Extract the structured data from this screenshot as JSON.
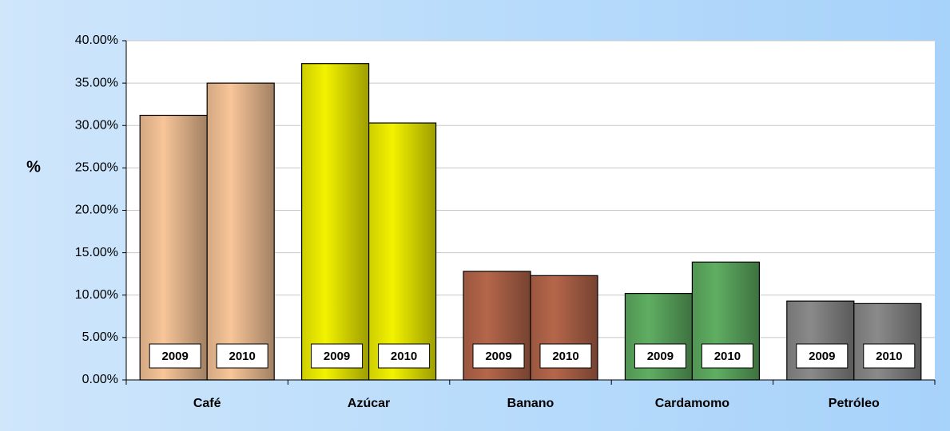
{
  "chart_data": {
    "type": "bar",
    "ylabel": "%",
    "categories": [
      "Café",
      "Azúcar",
      "Banano",
      "Cardamomo",
      "Petróleo"
    ],
    "category_colors": [
      "#f7c598",
      "#f2f200",
      "#b5664a",
      "#5fae62",
      "#8a8a8a"
    ],
    "series": [
      {
        "name": "2009",
        "values": [
          31.2,
          37.3,
          12.8,
          10.2,
          9.3
        ]
      },
      {
        "name": "2010",
        "values": [
          35.0,
          30.3,
          12.3,
          13.9,
          9.0
        ]
      }
    ],
    "ylim": [
      0,
      40
    ],
    "yticks": [
      {
        "value": 0,
        "label": "0.00%"
      },
      {
        "value": 5,
        "label": "5.00%"
      },
      {
        "value": 10,
        "label": "10.00%"
      },
      {
        "value": 15,
        "label": "15.00%"
      },
      {
        "value": 20,
        "label": "20.00%"
      },
      {
        "value": 25,
        "label": "25.00%"
      },
      {
        "value": 30,
        "label": "30.00%"
      },
      {
        "value": 35,
        "label": "35.00%"
      },
      {
        "value": 40,
        "label": "40.00%"
      }
    ],
    "grid": true
  }
}
